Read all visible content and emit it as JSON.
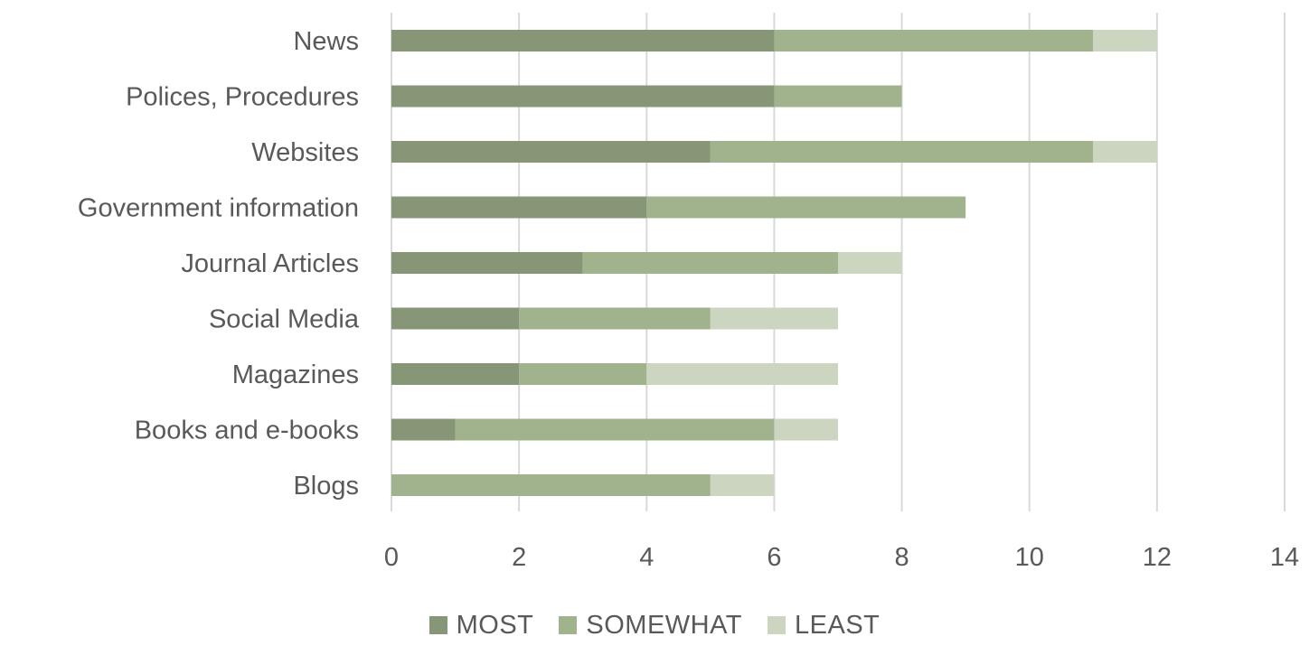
{
  "chart_data": {
    "type": "bar",
    "orientation": "horizontal",
    "stacked": true,
    "categories": [
      "News",
      "Polices, Procedures",
      "Websites",
      "Government information",
      "Journal Articles",
      "Social Media",
      "Magazines",
      "Books and e-books",
      "Blogs"
    ],
    "series": [
      {
        "name": "MOST",
        "color": "#869677",
        "values": [
          6,
          6,
          5,
          4,
          3,
          2,
          2,
          1,
          0
        ]
      },
      {
        "name": "SOMEWHAT",
        "color": "#a1b38c",
        "values": [
          5,
          2,
          6,
          5,
          4,
          3,
          2,
          5,
          5
        ]
      },
      {
        "name": "LEAST",
        "color": "#cbd5c0",
        "values": [
          1,
          0,
          1,
          0,
          1,
          2,
          3,
          1,
          1
        ]
      }
    ],
    "x_ticks": [
      "0",
      "2",
      "4",
      "6",
      "8",
      "10",
      "12",
      "14"
    ],
    "xlim": [
      0,
      14
    ],
    "grid": "vertical",
    "legend_position": "bottom"
  }
}
